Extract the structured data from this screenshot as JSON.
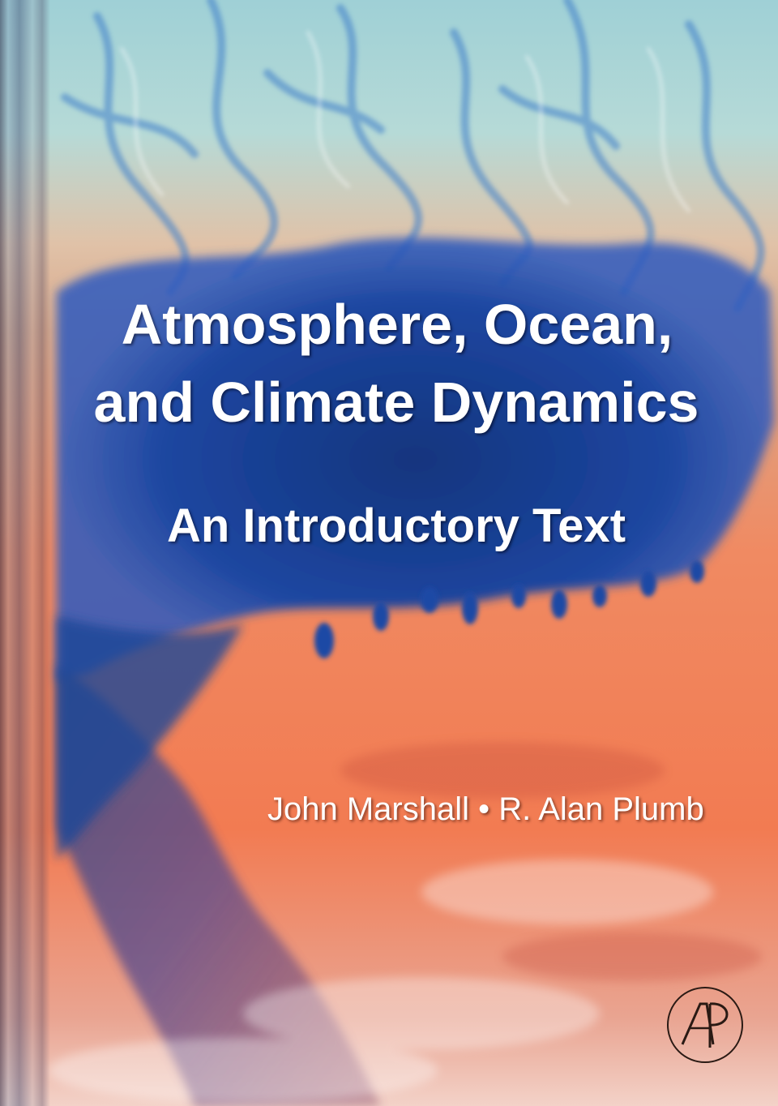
{
  "book": {
    "title_line1": "Atmosphere, Ocean,",
    "title_line2": "and Climate Dynamics",
    "subtitle": "An Introductory Text",
    "authors": {
      "author1": "John Marshall",
      "separator": "•",
      "author2": "R. Alan Plumb"
    },
    "publisher_logo": {
      "name": "publisher-logo",
      "letters": "AP"
    }
  },
  "colors": {
    "sky": "#a9d3d6",
    "ocean_blue": "#1c3f8c",
    "warm_orange": "#f17f58",
    "text": "#ffffff",
    "logo": "#2a1a14"
  }
}
